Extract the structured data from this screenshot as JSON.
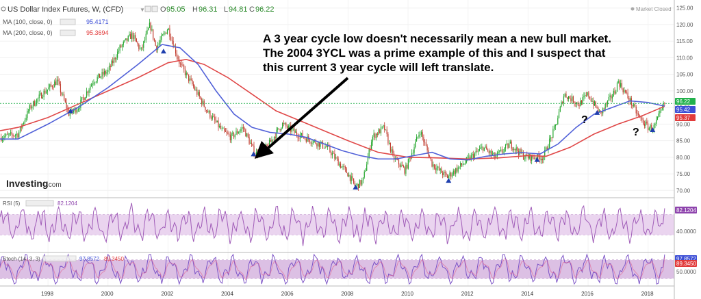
{
  "legend": {
    "symbol": "US Dollar Index Futures, W, (CFD)",
    "ohlc": [
      {
        "k": "O",
        "v": "95.05"
      },
      {
        "k": "H",
        "v": "96.31"
      },
      {
        "k": "L",
        "v": "94.81"
      },
      {
        "k": "C",
        "v": "96.22"
      }
    ],
    "ma100_label": "MA (100, close, 0)",
    "ma100_value": "95.4171",
    "ma200_label": "MA (200, close, 0)",
    "ma200_value": "95.3694",
    "rsi_label": "RSI (5)",
    "rsi_value": "82.1204",
    "stoch_label": "Stoch (14, 3, 3)",
    "stoch_k": "97.8572",
    "stoch_d": "89.3450"
  },
  "market_status": "Market Closed",
  "brand": {
    "main": "Investing",
    "suffix": ".com"
  },
  "annotation": {
    "lines": [
      "A 3 year cycle low doesn't necessarily mean a new bull market.",
      "The 2004 3YCL was a prime example of this and I suspect that",
      "this current 3 year cycle will left translate."
    ]
  },
  "question_marks": [
    "?",
    "?"
  ],
  "price_badges": [
    {
      "value": "96.22",
      "color": "#22b14c"
    },
    {
      "value": "95.42",
      "color": "#3d4fd6"
    },
    {
      "value": "95.37",
      "color": "#e23b3b"
    }
  ],
  "rsi_badge": "82.1204",
  "stoch_badges": [
    "97.8572",
    "89.3450"
  ],
  "colors": {
    "up": "#22a52b",
    "down": "#c0392b",
    "ma100": "#5060d8",
    "ma200": "#e04848",
    "osc": "#a05cb8",
    "band": "#ead4ef",
    "cycle_marker": "#1f3fae"
  },
  "chart_data": {
    "type": "candlestick",
    "x_ticks": [
      "1998",
      "2000",
      "2002",
      "2004",
      "2006",
      "2008",
      "2010",
      "2012",
      "2014",
      "2016",
      "2018"
    ],
    "price_ticks": [
      "125.00",
      "120.00",
      "115.00",
      "110.00",
      "105.00",
      "100.00",
      "95.00",
      "90.00",
      "85.00",
      "80.00",
      "75.00",
      "70.00"
    ],
    "ylim": [
      68,
      127
    ],
    "price_anchors": [
      [
        1996.4,
        86
      ],
      [
        1997.0,
        87
      ],
      [
        1997.4,
        95
      ],
      [
        1997.8,
        99
      ],
      [
        1998.3,
        103
      ],
      [
        1998.7,
        93
      ],
      [
        1999.0,
        95
      ],
      [
        1999.5,
        103
      ],
      [
        2000.0,
        106
      ],
      [
        2000.4,
        113
      ],
      [
        2000.8,
        117
      ],
      [
        2001.1,
        112
      ],
      [
        2001.4,
        120
      ],
      [
        2001.6,
        113
      ],
      [
        2002.0,
        119
      ],
      [
        2002.4,
        108
      ],
      [
        2002.8,
        102
      ],
      [
        2003.3,
        94
      ],
      [
        2003.8,
        88
      ],
      [
        2004.1,
        86
      ],
      [
        2004.5,
        89
      ],
      [
        2004.9,
        81
      ],
      [
        2005.3,
        83
      ],
      [
        2005.8,
        90
      ],
      [
        2006.3,
        87
      ],
      [
        2006.8,
        85
      ],
      [
        2007.3,
        83
      ],
      [
        2007.8,
        77
      ],
      [
        2008.0,
        75
      ],
      [
        2008.25,
        71
      ],
      [
        2008.5,
        73
      ],
      [
        2008.8,
        86
      ],
      [
        2009.2,
        89
      ],
      [
        2009.5,
        80
      ],
      [
        2009.9,
        76
      ],
      [
        2010.4,
        88
      ],
      [
        2010.8,
        78
      ],
      [
        2011.3,
        74
      ],
      [
        2011.7,
        77
      ],
      [
        2012.1,
        80
      ],
      [
        2012.5,
        83
      ],
      [
        2012.9,
        80
      ],
      [
        2013.4,
        84
      ],
      [
        2013.9,
        80
      ],
      [
        2014.3,
        80
      ],
      [
        2014.5,
        80
      ],
      [
        2014.9,
        89
      ],
      [
        2015.2,
        99
      ],
      [
        2015.7,
        96
      ],
      [
        2016.0,
        99
      ],
      [
        2016.4,
        93
      ],
      [
        2016.9,
        100
      ],
      [
        2017.0,
        103
      ],
      [
        2017.4,
        97
      ],
      [
        2017.7,
        92
      ],
      [
        2018.0,
        89
      ],
      [
        2018.2,
        89
      ],
      [
        2018.55,
        96.22
      ]
    ],
    "cycle_lows": [
      {
        "x": 1998.75,
        "y": 93.5
      },
      {
        "x": 2001.85,
        "y": 111.5
      },
      {
        "x": 2004.85,
        "y": 80.5
      },
      {
        "x": 2008.25,
        "y": 70.5
      },
      {
        "x": 2011.35,
        "y": 72.5
      },
      {
        "x": 2014.3,
        "y": 78.8
      },
      {
        "x": 2016.3,
        "y": 93.0
      },
      {
        "x": 2018.15,
        "y": 87.8
      }
    ],
    "ma100": [
      [
        1996.4,
        85.5
      ],
      [
        1997.0,
        85.5
      ],
      [
        1998.0,
        90
      ],
      [
        1999.0,
        95
      ],
      [
        2000.0,
        101
      ],
      [
        2001.0,
        108
      ],
      [
        2001.8,
        114
      ],
      [
        2002.4,
        113
      ],
      [
        2003.0,
        108
      ],
      [
        2003.6,
        100
      ],
      [
        2004.2,
        93
      ],
      [
        2004.8,
        89
      ],
      [
        2005.4,
        87.5
      ],
      [
        2006.0,
        87
      ],
      [
        2006.6,
        86
      ],
      [
        2007.2,
        84
      ],
      [
        2007.8,
        82
      ],
      [
        2008.4,
        80.5
      ],
      [
        2009.0,
        79.5
      ],
      [
        2009.6,
        79.5
      ],
      [
        2010.2,
        80.5
      ],
      [
        2010.8,
        81.5
      ],
      [
        2011.4,
        79.5
      ],
      [
        2012.0,
        79.2
      ],
      [
        2012.6,
        80.3
      ],
      [
        2013.2,
        81
      ],
      [
        2013.8,
        81.4
      ],
      [
        2014.4,
        81
      ],
      [
        2015.0,
        84
      ],
      [
        2015.6,
        89
      ],
      [
        2016.2,
        93
      ],
      [
        2016.8,
        95
      ],
      [
        2017.4,
        97
      ],
      [
        2018.0,
        96.5
      ],
      [
        2018.55,
        95.42
      ]
    ],
    "ma200": [
      [
        1996.4,
        88
      ],
      [
        1997.0,
        89
      ],
      [
        1998.0,
        92
      ],
      [
        1999.0,
        96
      ],
      [
        2000.0,
        100
      ],
      [
        2001.0,
        104
      ],
      [
        2002.0,
        108.5
      ],
      [
        2002.6,
        109.5
      ],
      [
        2003.2,
        108
      ],
      [
        2004.0,
        104
      ],
      [
        2004.8,
        99
      ],
      [
        2005.6,
        94
      ],
      [
        2006.4,
        91
      ],
      [
        2007.2,
        88
      ],
      [
        2008.0,
        85
      ],
      [
        2009.0,
        81.5
      ],
      [
        2010.0,
        80
      ],
      [
        2011.0,
        79.8
      ],
      [
        2012.0,
        79.5
      ],
      [
        2013.0,
        79.8
      ],
      [
        2014.0,
        80.5
      ],
      [
        2014.6,
        80.3
      ],
      [
        2015.4,
        83
      ],
      [
        2016.2,
        87
      ],
      [
        2017.0,
        90
      ],
      [
        2017.8,
        92.5
      ],
      [
        2018.55,
        95.37
      ]
    ],
    "rsi": {
      "levels": [
        "40.0000"
      ],
      "band": [
        30,
        70
      ],
      "last": 82.1204
    },
    "stoch": {
      "levels": [
        "50.0000"
      ],
      "band": [
        20,
        80
      ],
      "k_last": 97.8572,
      "d_last": 89.345
    }
  }
}
